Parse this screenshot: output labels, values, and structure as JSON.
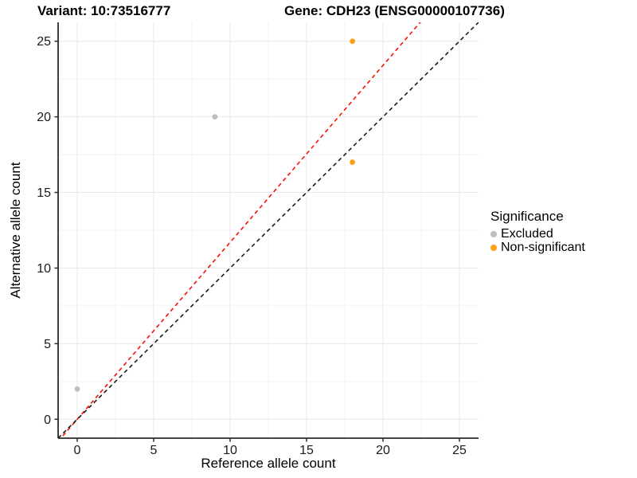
{
  "header": {
    "variant_title": "Variant: 10:73516777",
    "gene_title": "Gene: CDH23 (ENSG00000107736)"
  },
  "chart_data": {
    "type": "scatter",
    "title_left": "Variant: 10:73516777",
    "title_right": "Gene: CDH23 (ENSG00000107736)",
    "xlabel": "Reference allele count",
    "ylabel": "Alternative allele count",
    "xlim": [
      -1.25,
      26.25
    ],
    "ylim": [
      -1.25,
      26.25
    ],
    "xticks": [
      0,
      5,
      10,
      15,
      20,
      25
    ],
    "yticks": [
      0,
      5,
      10,
      15,
      20,
      25
    ],
    "minor_xticks": [
      2.5,
      7.5,
      12.5,
      17.5,
      22.5
    ],
    "minor_yticks": [
      2.5,
      7.5,
      12.5,
      17.5,
      22.5
    ],
    "grid": "major-and-minor",
    "series": [
      {
        "name": "Excluded",
        "color": "#BEBEBE",
        "points": [
          [
            0,
            2
          ],
          [
            9,
            20
          ]
        ]
      },
      {
        "name": "Non-significant",
        "color": "#FFA012",
        "points": [
          [
            18,
            17
          ],
          [
            18,
            25
          ]
        ]
      }
    ],
    "reference_lines": [
      {
        "name": "fitted-line",
        "color": "#FA1005",
        "slope": 1.17,
        "intercept": 0,
        "style": "dashed"
      },
      {
        "name": "identity-line",
        "color": "#1A1A1A",
        "slope": 1.0,
        "intercept": 0,
        "style": "dashed"
      }
    ],
    "legend": {
      "title": "Significance",
      "position": "right",
      "entries": [
        {
          "label": "Excluded",
          "color": "#BEBEBE"
        },
        {
          "label": "Non-significant",
          "color": "#FFA012"
        }
      ]
    }
  },
  "style": {
    "major_grid_color": "#E8E8E8",
    "minor_grid_color": "#F3F3F3",
    "axis_line_color": "#2B2B2B",
    "tick_label_color": "#1A1A1A"
  }
}
